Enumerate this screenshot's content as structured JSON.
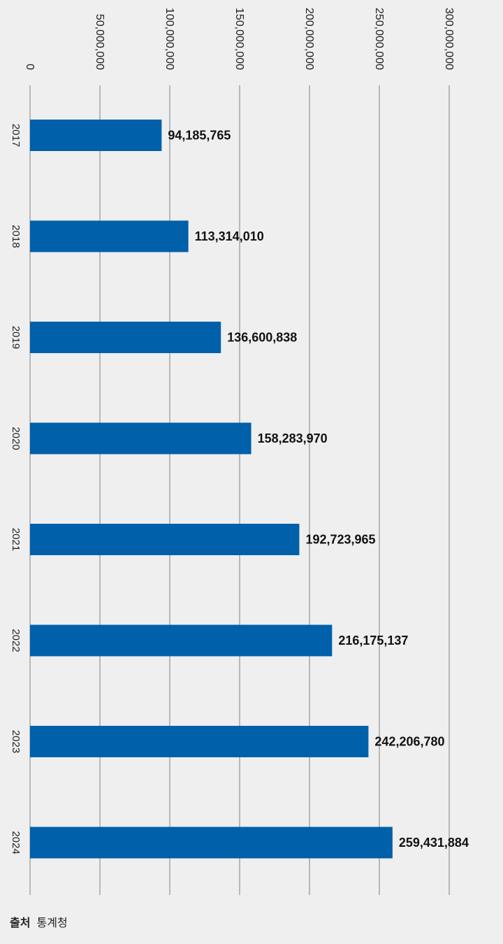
{
  "chart_data": {
    "type": "bar",
    "orientation": "horizontal",
    "categories": [
      "2017",
      "2018",
      "2019",
      "2020",
      "2021",
      "2022",
      "2023",
      "2024"
    ],
    "values": [
      94185765,
      113314010,
      136600838,
      158283970,
      192723965,
      216175137,
      242206780,
      259431884
    ],
    "value_labels": [
      "94,185,765",
      "113,314,010",
      "136,600,838",
      "158,283,970",
      "192,723,965",
      "216,175,137",
      "242,206,780",
      "259,431,884"
    ],
    "xlim": [
      0,
      300000000
    ],
    "tick_values": [
      0,
      50000000,
      100000000,
      150000000,
      200000000,
      250000000,
      300000000
    ],
    "tick_labels": [
      "0",
      "50,000,000",
      "100,000,000",
      "150,000,000",
      "200,000,000",
      "250,000,000",
      "300,000,000"
    ],
    "tick_label_rotation": "rotated 90° clockwise",
    "grid": true,
    "legend": "none",
    "colors": {
      "bar": "#0060aa",
      "grid": "#9a9a9a",
      "background": "#efefef",
      "text": "#111111"
    }
  },
  "source": {
    "label": "출처",
    "value": "통계청"
  }
}
